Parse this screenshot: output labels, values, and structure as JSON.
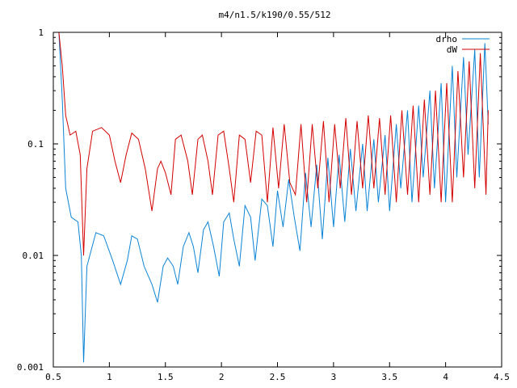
{
  "chart_data": {
    "type": "line",
    "title": "m4/n1.5/k190/0.55/512",
    "xlabel": "",
    "ylabel": "",
    "xlim": [
      0.5,
      4.5
    ],
    "ylim": [
      0.001,
      1
    ],
    "yscale": "log",
    "grid": false,
    "legend_position": "top-right",
    "xticks": [
      0.5,
      1,
      1.5,
      2,
      2.5,
      3,
      3.5,
      4,
      4.5
    ],
    "xtick_labels": [
      "0.5",
      "1",
      "1.5",
      "2",
      "2.5",
      "3",
      "3.5",
      "4",
      "4.5"
    ],
    "yticks": [
      0.001,
      0.01,
      0.1,
      1
    ],
    "ytick_labels": [
      "0.001",
      "0.01",
      "0.1",
      "1"
    ],
    "series": [
      {
        "name": "drho",
        "color": "#0a84d6",
        "x": [
          0.55,
          0.58,
          0.61,
          0.66,
          0.72,
          0.75,
          0.77,
          0.8,
          0.88,
          0.95,
          1.03,
          1.1,
          1.16,
          1.2,
          1.25,
          1.31,
          1.38,
          1.43,
          1.48,
          1.52,
          1.57,
          1.61,
          1.66,
          1.71,
          1.75,
          1.79,
          1.84,
          1.88,
          1.93,
          1.98,
          2.02,
          2.07,
          2.11,
          2.16,
          2.21,
          2.26,
          2.3,
          2.36,
          2.41,
          2.46,
          2.5,
          2.55,
          2.6,
          2.65,
          2.7,
          2.75,
          2.8,
          2.85,
          2.9,
          2.95,
          3.0,
          3.05,
          3.1,
          3.15,
          3.2,
          3.26,
          3.3,
          3.36,
          3.4,
          3.46,
          3.5,
          3.56,
          3.6,
          3.66,
          3.7,
          3.76,
          3.8,
          3.86,
          3.9,
          3.96,
          4.0,
          4.06,
          4.1,
          4.16,
          4.2,
          4.26,
          4.3,
          4.35,
          4.38
        ],
        "values": [
          1.0,
          0.25,
          0.04,
          0.022,
          0.02,
          0.01,
          0.0011,
          0.008,
          0.016,
          0.015,
          0.009,
          0.0055,
          0.009,
          0.015,
          0.014,
          0.008,
          0.0055,
          0.0038,
          0.008,
          0.0095,
          0.008,
          0.0055,
          0.012,
          0.016,
          0.012,
          0.007,
          0.017,
          0.02,
          0.012,
          0.0065,
          0.02,
          0.024,
          0.014,
          0.008,
          0.028,
          0.022,
          0.009,
          0.032,
          0.028,
          0.012,
          0.038,
          0.018,
          0.048,
          0.022,
          0.011,
          0.055,
          0.018,
          0.065,
          0.014,
          0.075,
          0.018,
          0.08,
          0.02,
          0.09,
          0.025,
          0.1,
          0.025,
          0.11,
          0.03,
          0.12,
          0.025,
          0.15,
          0.04,
          0.2,
          0.03,
          0.22,
          0.05,
          0.3,
          0.04,
          0.35,
          0.03,
          0.5,
          0.05,
          0.6,
          0.08,
          0.7,
          0.05,
          0.8,
          0.15
        ]
      },
      {
        "name": "dW",
        "color": "#d40000",
        "x": [
          0.55,
          0.58,
          0.61,
          0.65,
          0.7,
          0.74,
          0.77,
          0.8,
          0.85,
          0.93,
          1.0,
          1.05,
          1.1,
          1.15,
          1.2,
          1.26,
          1.32,
          1.38,
          1.43,
          1.46,
          1.5,
          1.55,
          1.59,
          1.64,
          1.7,
          1.74,
          1.79,
          1.83,
          1.88,
          1.92,
          1.97,
          2.02,
          2.07,
          2.11,
          2.16,
          2.21,
          2.26,
          2.31,
          2.36,
          2.41,
          2.46,
          2.51,
          2.56,
          2.61,
          2.66,
          2.71,
          2.76,
          2.81,
          2.86,
          2.91,
          2.96,
          3.01,
          3.06,
          3.11,
          3.16,
          3.21,
          3.26,
          3.31,
          3.36,
          3.41,
          3.46,
          3.51,
          3.56,
          3.61,
          3.66,
          3.71,
          3.76,
          3.81,
          3.86,
          3.91,
          3.96,
          4.01,
          4.06,
          4.11,
          4.16,
          4.21,
          4.26,
          4.31,
          4.36,
          4.38
        ],
        "values": [
          1.0,
          0.5,
          0.18,
          0.12,
          0.13,
          0.08,
          0.01,
          0.06,
          0.13,
          0.14,
          0.12,
          0.07,
          0.045,
          0.08,
          0.125,
          0.11,
          0.06,
          0.025,
          0.06,
          0.07,
          0.055,
          0.035,
          0.11,
          0.12,
          0.07,
          0.035,
          0.11,
          0.12,
          0.07,
          0.035,
          0.12,
          0.13,
          0.06,
          0.03,
          0.12,
          0.11,
          0.045,
          0.13,
          0.12,
          0.03,
          0.14,
          0.04,
          0.15,
          0.045,
          0.035,
          0.15,
          0.03,
          0.15,
          0.04,
          0.16,
          0.03,
          0.15,
          0.04,
          0.17,
          0.035,
          0.16,
          0.04,
          0.18,
          0.04,
          0.17,
          0.035,
          0.18,
          0.03,
          0.2,
          0.035,
          0.22,
          0.03,
          0.25,
          0.035,
          0.3,
          0.03,
          0.35,
          0.03,
          0.45,
          0.05,
          0.55,
          0.04,
          0.65,
          0.035,
          0.2
        ]
      }
    ]
  }
}
